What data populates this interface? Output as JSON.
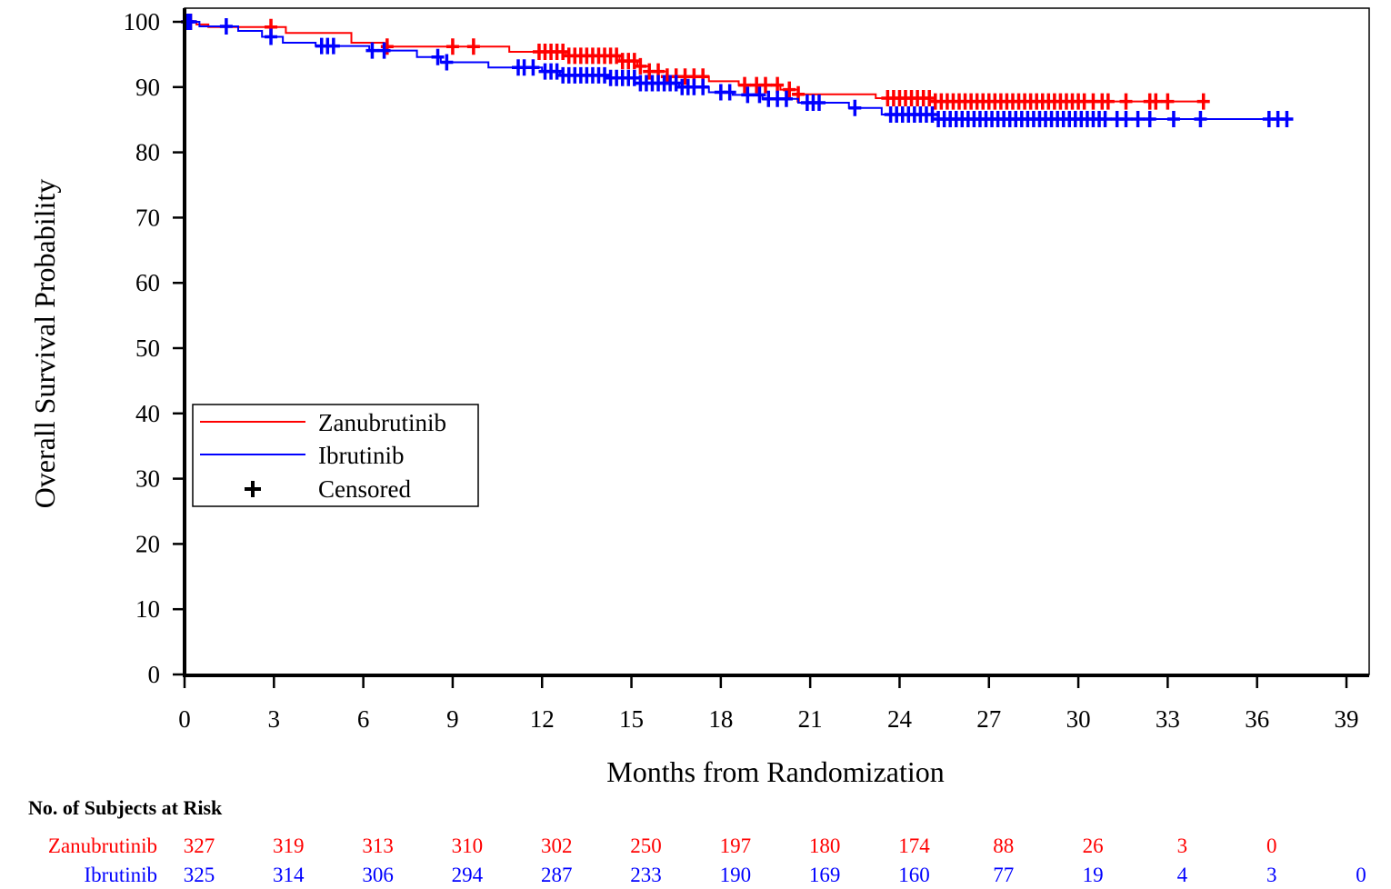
{
  "chart_data": {
    "type": "line",
    "subtype": "kaplan-meier",
    "title": "",
    "xlabel": "Months from Randomization",
    "ylabel": "Overall Survival Probability",
    "xlim": [
      0,
      39
    ],
    "ylim": [
      0,
      100
    ],
    "xticks": [
      "0",
      "3",
      "6",
      "9",
      "12",
      "15",
      "18",
      "21",
      "24",
      "27",
      "30",
      "33",
      "36",
      "39"
    ],
    "yticks": [
      "0",
      "10",
      "20",
      "30",
      "40",
      "50",
      "60",
      "70",
      "80",
      "90",
      "100"
    ],
    "grid": false,
    "legend_placement": "center-left",
    "legend": {
      "zanubrutinib": "Zanubrutinib",
      "ibrutinib": "Ibrutinib",
      "censored": "Censored"
    },
    "series": [
      {
        "name": "Zanubrutinib",
        "color": "#ff0000",
        "steps": [
          [
            0,
            100
          ],
          [
            0.4,
            99.6
          ],
          [
            0.8,
            99.2
          ],
          [
            3.4,
            98.3
          ],
          [
            5.6,
            96.8
          ],
          [
            6.7,
            96.2
          ],
          [
            10.9,
            95.4
          ],
          [
            12.8,
            94.8
          ],
          [
            14.6,
            94.0
          ],
          [
            15.2,
            93.2
          ],
          [
            15.6,
            92.4
          ],
          [
            16.2,
            91.6
          ],
          [
            17.6,
            90.9
          ],
          [
            18.6,
            90.3
          ],
          [
            20.0,
            89.6
          ],
          [
            20.6,
            88.9
          ],
          [
            23.2,
            88.3
          ],
          [
            25.2,
            87.8
          ],
          [
            34.2,
            87.8
          ]
        ],
        "censored": [
          0.1,
          0.2,
          2.9,
          6.8,
          9.0,
          9.7,
          11.9,
          12.1,
          12.3,
          12.5,
          12.7,
          12.9,
          13.1,
          13.3,
          13.5,
          13.7,
          13.9,
          14.1,
          14.3,
          14.5,
          14.7,
          14.9,
          15.1,
          15.3,
          15.6,
          15.9,
          16.2,
          16.5,
          16.8,
          17.1,
          17.4,
          18.8,
          19.2,
          19.5,
          19.9,
          20.3,
          20.6,
          23.6,
          23.8,
          24.0,
          24.2,
          24.4,
          24.6,
          24.8,
          25.0,
          25.2,
          25.4,
          25.6,
          25.8,
          26.0,
          26.2,
          26.4,
          26.6,
          26.8,
          27.0,
          27.2,
          27.4,
          27.6,
          27.8,
          28.0,
          28.2,
          28.4,
          28.6,
          28.8,
          29.0,
          29.2,
          29.4,
          29.6,
          29.8,
          30.0,
          30.2,
          30.5,
          30.8,
          31.0,
          31.6,
          32.4,
          32.6,
          33.0,
          34.2
        ]
      },
      {
        "name": "Ibrutinib",
        "color": "#0000ff",
        "steps": [
          [
            0,
            100
          ],
          [
            0.5,
            99.3
          ],
          [
            1.8,
            98.6
          ],
          [
            2.6,
            97.7
          ],
          [
            3.3,
            96.8
          ],
          [
            4.4,
            96.3
          ],
          [
            6.2,
            95.6
          ],
          [
            7.8,
            94.6
          ],
          [
            8.6,
            93.8
          ],
          [
            10.2,
            93.0
          ],
          [
            12.0,
            92.4
          ],
          [
            12.6,
            91.8
          ],
          [
            14.2,
            91.4
          ],
          [
            15.3,
            90.6
          ],
          [
            16.6,
            90.0
          ],
          [
            17.6,
            89.2
          ],
          [
            18.4,
            88.8
          ],
          [
            19.4,
            88.2
          ],
          [
            20.6,
            87.6
          ],
          [
            22.3,
            86.8
          ],
          [
            23.4,
            85.8
          ],
          [
            25.3,
            85.1
          ],
          [
            37.2,
            85.1
          ]
        ],
        "censored": [
          0.1,
          0.2,
          1.4,
          2.9,
          4.6,
          4.8,
          5.0,
          6.3,
          6.7,
          8.5,
          8.8,
          11.2,
          11.4,
          11.7,
          12.1,
          12.3,
          12.5,
          12.7,
          12.9,
          13.1,
          13.3,
          13.5,
          13.7,
          13.9,
          14.1,
          14.3,
          14.5,
          14.7,
          14.9,
          15.1,
          15.3,
          15.5,
          15.7,
          15.9,
          16.1,
          16.3,
          16.5,
          16.7,
          16.9,
          17.1,
          17.4,
          18.0,
          18.3,
          18.9,
          19.3,
          19.6,
          19.9,
          20.2,
          20.9,
          21.1,
          21.3,
          22.5,
          23.7,
          23.9,
          24.1,
          24.3,
          24.5,
          24.7,
          24.9,
          25.1,
          25.3,
          25.5,
          25.7,
          25.9,
          26.1,
          26.3,
          26.5,
          26.7,
          26.9,
          27.1,
          27.3,
          27.5,
          27.7,
          27.9,
          28.1,
          28.3,
          28.5,
          28.7,
          28.9,
          29.1,
          29.3,
          29.5,
          29.7,
          29.9,
          30.1,
          30.3,
          30.5,
          30.7,
          30.9,
          31.3,
          31.6,
          32.0,
          32.4,
          33.2,
          34.1,
          36.4,
          36.7,
          37.0
        ]
      }
    ],
    "risk_table": {
      "title": "No. of Subjects at Risk",
      "rows": [
        {
          "label": "Zanubrutinib",
          "color": "#ff0000",
          "values": [
            "327",
            "319",
            "313",
            "310",
            "302",
            "250",
            "197",
            "180",
            "174",
            "88",
            "26",
            "3",
            "0"
          ]
        },
        {
          "label": "Ibrutinib",
          "color": "#0000ff",
          "values": [
            "325",
            "314",
            "306",
            "294",
            "287",
            "233",
            "190",
            "169",
            "160",
            "77",
            "19",
            "4",
            "3",
            "0"
          ]
        }
      ]
    }
  }
}
